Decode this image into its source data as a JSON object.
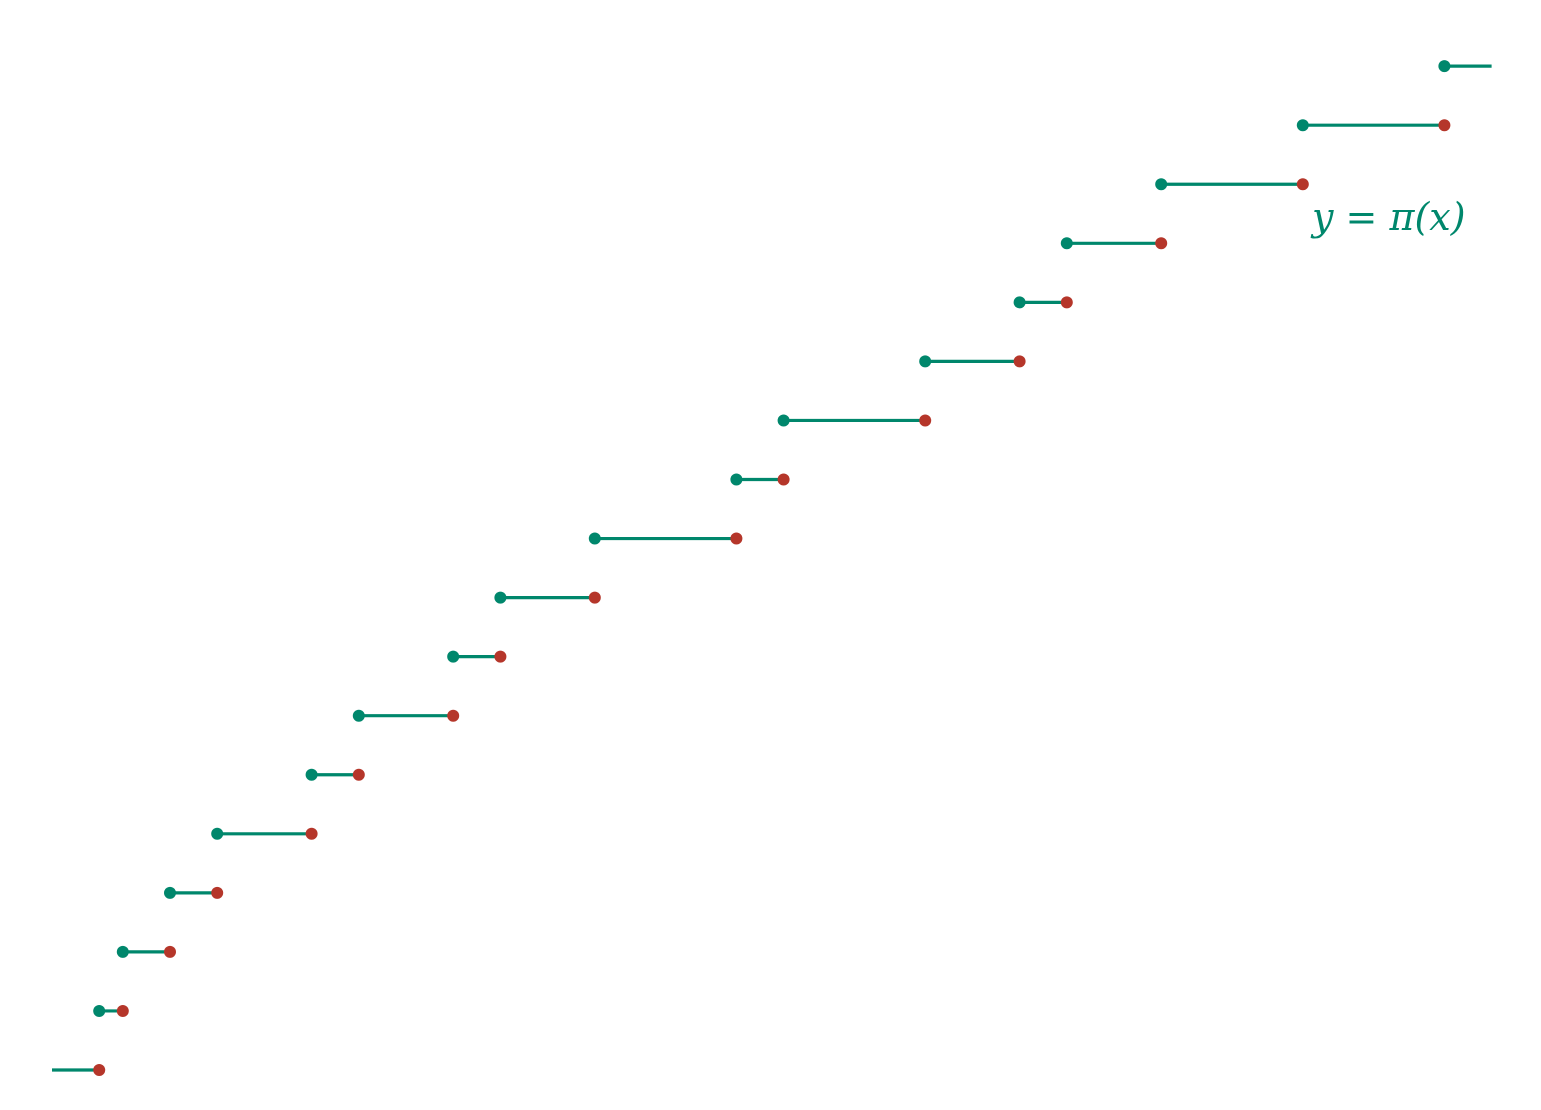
{
  "chart_data": {
    "type": "line",
    "subtype": "step",
    "title": "",
    "xlabel": "",
    "ylabel": "",
    "grid": false,
    "axes_visible": false,
    "function_label": "y = π(x)",
    "primes": [
      2,
      3,
      5,
      7,
      11,
      13,
      17,
      19,
      23,
      29,
      31,
      37,
      41,
      43,
      47,
      53,
      59,
      61
    ],
    "xlim": [
      0,
      63
    ],
    "ylim": [
      0,
      17
    ],
    "steps": [
      {
        "x_start": 0,
        "x_end": 2,
        "y": 0
      },
      {
        "x_start": 2,
        "x_end": 3,
        "y": 1
      },
      {
        "x_start": 3,
        "x_end": 5,
        "y": 2
      },
      {
        "x_start": 5,
        "x_end": 7,
        "y": 3
      },
      {
        "x_start": 7,
        "x_end": 11,
        "y": 4
      },
      {
        "x_start": 11,
        "x_end": 13,
        "y": 5
      },
      {
        "x_start": 13,
        "x_end": 17,
        "y": 6
      },
      {
        "x_start": 17,
        "x_end": 19,
        "y": 7
      },
      {
        "x_start": 19,
        "x_end": 23,
        "y": 8
      },
      {
        "x_start": 23,
        "x_end": 29,
        "y": 9
      },
      {
        "x_start": 29,
        "x_end": 31,
        "y": 10
      },
      {
        "x_start": 31,
        "x_end": 37,
        "y": 11
      },
      {
        "x_start": 37,
        "x_end": 41,
        "y": 12
      },
      {
        "x_start": 41,
        "x_end": 43,
        "y": 13
      },
      {
        "x_start": 43,
        "x_end": 47,
        "y": 14
      },
      {
        "x_start": 47,
        "x_end": 53,
        "y": 15
      },
      {
        "x_start": 53,
        "x_end": 59,
        "y": 16
      },
      {
        "x_start": 59,
        "x_end": 61,
        "y": 17
      }
    ],
    "colors": {
      "line": "#00876c",
      "closed_point": "#00876c",
      "open_point": "#b5362a",
      "label": "#00876c"
    }
  }
}
